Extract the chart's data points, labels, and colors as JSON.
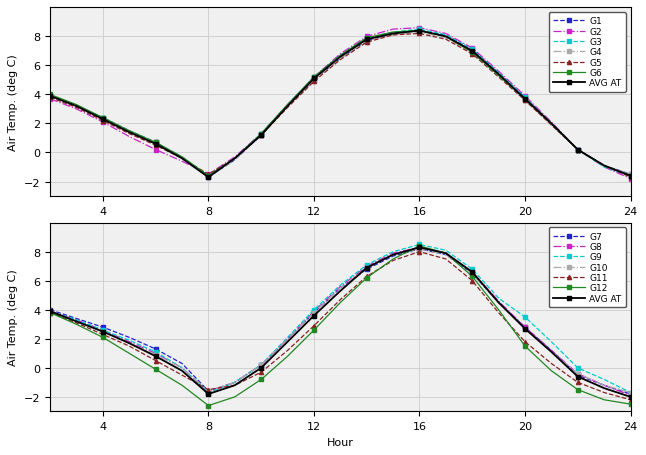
{
  "hours": [
    2,
    3,
    4,
    5,
    6,
    7,
    8,
    9,
    10,
    11,
    12,
    13,
    14,
    15,
    16,
    17,
    18,
    19,
    20,
    21,
    22,
    23,
    24
  ],
  "top": {
    "G1": [
      3.9,
      3.2,
      2.4,
      1.5,
      0.7,
      -0.4,
      -1.7,
      -0.5,
      1.2,
      3.2,
      5.0,
      6.5,
      7.7,
      8.2,
      8.4,
      8.1,
      7.1,
      5.5,
      3.8,
      2.0,
      0.2,
      -0.9,
      -1.5
    ],
    "G2": [
      3.7,
      3.0,
      2.1,
      1.1,
      0.2,
      -0.6,
      -1.5,
      -0.3,
      1.3,
      3.3,
      5.2,
      6.8,
      8.0,
      8.5,
      8.6,
      8.2,
      7.2,
      5.6,
      3.9,
      2.1,
      0.2,
      -1.0,
      -1.8
    ],
    "G3": [
      3.9,
      3.2,
      2.4,
      1.5,
      0.7,
      -0.3,
      -1.6,
      -0.4,
      1.3,
      3.3,
      5.2,
      6.7,
      7.9,
      8.3,
      8.5,
      8.1,
      7.1,
      5.5,
      3.8,
      2.0,
      0.2,
      -1.0,
      -1.6
    ],
    "G4": [
      3.9,
      3.2,
      2.4,
      1.5,
      0.7,
      -0.3,
      -1.7,
      -0.5,
      1.2,
      3.2,
      5.0,
      6.5,
      7.7,
      8.1,
      8.3,
      7.9,
      6.9,
      5.3,
      3.6,
      1.9,
      0.2,
      -0.9,
      -1.5
    ],
    "G5": [
      3.8,
      3.1,
      2.2,
      1.3,
      0.5,
      -0.4,
      -1.5,
      -0.4,
      1.2,
      3.1,
      4.9,
      6.4,
      7.6,
      8.1,
      8.2,
      7.8,
      6.8,
      5.2,
      3.6,
      1.9,
      0.2,
      -0.9,
      -1.7
    ],
    "G6": [
      4.0,
      3.3,
      2.4,
      1.5,
      0.7,
      -0.3,
      -1.6,
      -0.4,
      1.3,
      3.3,
      5.2,
      6.7,
      7.9,
      8.3,
      8.4,
      8.0,
      6.9,
      5.3,
      3.7,
      2.0,
      0.2,
      -0.9,
      -1.6
    ],
    "AVG AT": [
      3.9,
      3.2,
      2.3,
      1.4,
      0.6,
      -0.4,
      -1.7,
      -0.4,
      1.2,
      3.2,
      5.1,
      6.6,
      7.8,
      8.2,
      8.4,
      8.0,
      7.0,
      5.4,
      3.7,
      2.0,
      0.2,
      -0.9,
      -1.6
    ]
  },
  "bottom": {
    "G7": [
      4.0,
      3.4,
      2.8,
      2.1,
      1.3,
      0.3,
      -1.6,
      -1.0,
      0.2,
      2.0,
      3.8,
      5.5,
      6.8,
      7.7,
      8.2,
      7.8,
      6.5,
      4.5,
      2.8,
      1.2,
      -0.5,
      -1.2,
      -1.8
    ],
    "G8": [
      3.9,
      3.3,
      2.6,
      1.8,
      1.0,
      0.0,
      -1.7,
      -1.0,
      0.2,
      2.0,
      3.9,
      5.6,
      7.0,
      7.9,
      8.3,
      7.9,
      6.6,
      4.6,
      2.8,
      1.2,
      -0.4,
      -1.2,
      -1.9
    ],
    "G9": [
      3.9,
      3.3,
      2.6,
      1.9,
      1.1,
      0.0,
      -1.7,
      -1.0,
      0.2,
      2.1,
      4.0,
      5.7,
      7.1,
      8.0,
      8.5,
      8.1,
      6.8,
      4.8,
      3.5,
      1.8,
      0.0,
      -0.8,
      -1.7
    ],
    "G10": [
      3.8,
      3.2,
      2.5,
      1.7,
      0.9,
      0.0,
      -1.6,
      -1.0,
      0.2,
      2.0,
      3.8,
      5.5,
      6.9,
      7.8,
      8.2,
      7.8,
      6.5,
      4.5,
      2.7,
      1.1,
      -0.4,
      -1.2,
      -1.7
    ],
    "G11": [
      3.8,
      3.1,
      2.3,
      1.5,
      0.5,
      -0.5,
      -1.5,
      -1.2,
      -0.3,
      1.2,
      2.9,
      4.7,
      6.3,
      7.4,
      8.0,
      7.5,
      6.0,
      3.8,
      1.8,
      0.3,
      -1.0,
      -1.7,
      -2.2
    ],
    "G12": [
      3.8,
      3.0,
      2.1,
      1.0,
      -0.1,
      -1.2,
      -2.6,
      -2.0,
      -0.8,
      0.8,
      2.6,
      4.5,
      6.2,
      7.5,
      8.4,
      7.9,
      6.3,
      4.0,
      1.5,
      -0.2,
      -1.5,
      -2.2,
      -2.5
    ],
    "AVG AT": [
      3.9,
      3.2,
      2.5,
      1.7,
      0.8,
      -0.2,
      -1.8,
      -1.2,
      0.0,
      1.8,
      3.6,
      5.3,
      6.9,
      7.8,
      8.3,
      7.9,
      6.6,
      4.5,
      2.7,
      1.1,
      -0.6,
      -1.4,
      -2.0
    ]
  },
  "top_styles": {
    "G1": {
      "color": "#2222CC",
      "linestyle": "--",
      "marker": "s",
      "markersize": 3,
      "markevery": 2
    },
    "G2": {
      "color": "#CC22CC",
      "linestyle": "-.",
      "marker": "s",
      "markersize": 3,
      "markevery": 2
    },
    "G3": {
      "color": "#00CCCC",
      "linestyle": "--",
      "marker": "s",
      "markersize": 3,
      "markevery": 2
    },
    "G4": {
      "color": "#AAAAAA",
      "linestyle": "-.",
      "marker": "s",
      "markersize": 3,
      "markevery": 2
    },
    "G5": {
      "color": "#882222",
      "linestyle": "--",
      "marker": "^",
      "markersize": 3,
      "markevery": 2
    },
    "G6": {
      "color": "#228822",
      "linestyle": "-",
      "marker": "s",
      "markersize": 3,
      "markevery": 2
    },
    "AVG AT": {
      "color": "#000000",
      "linestyle": "-",
      "marker": "s",
      "markersize": 3,
      "markevery": 2
    }
  },
  "bottom_styles": {
    "G7": {
      "color": "#2222CC",
      "linestyle": "--",
      "marker": "s",
      "markersize": 3,
      "markevery": 2
    },
    "G8": {
      "color": "#CC22CC",
      "linestyle": "-.",
      "marker": "s",
      "markersize": 3,
      "markevery": 2
    },
    "G9": {
      "color": "#00CCCC",
      "linestyle": "--",
      "marker": "s",
      "markersize": 3,
      "markevery": 2
    },
    "G10": {
      "color": "#AAAAAA",
      "linestyle": "-.",
      "marker": "s",
      "markersize": 3,
      "markevery": 2
    },
    "G11": {
      "color": "#882222",
      "linestyle": "--",
      "marker": "^",
      "markersize": 3,
      "markevery": 2
    },
    "G12": {
      "color": "#228822",
      "linestyle": "-",
      "marker": "s",
      "markersize": 3,
      "markevery": 2
    },
    "AVG AT": {
      "color": "#000000",
      "linestyle": "-",
      "marker": "s",
      "markersize": 3,
      "markevery": 2
    }
  },
  "xlabel": "Hour",
  "ylabel": "Air Temp. (deg C)",
  "xlim": [
    2,
    24
  ],
  "ylim": [
    -3,
    10
  ],
  "xticks": [
    4,
    8,
    12,
    16,
    20,
    24
  ],
  "yticks": [
    -2,
    0,
    2,
    4,
    6,
    8
  ],
  "legend_fontsize": 6.5,
  "axis_fontsize": 8,
  "tick_fontsize": 8,
  "bg_color": "#f0f0f0"
}
